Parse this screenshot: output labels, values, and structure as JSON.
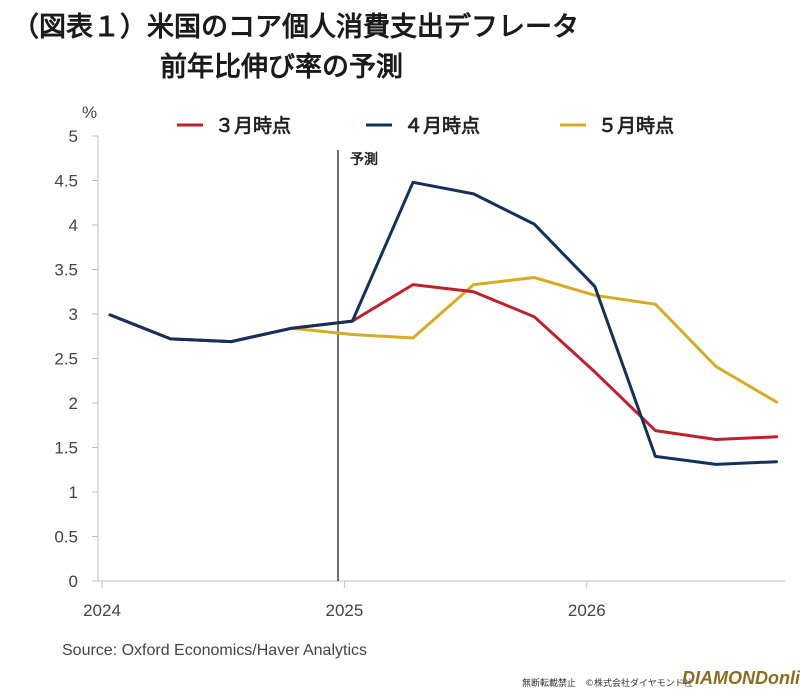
{
  "title_line1": "（図表１）米国のコア個人消費支出デフレータ",
  "title_line2": "前年比伸び率の予測",
  "source": "Source: Oxford Economics/Haver Analytics",
  "copyright": "無断転載禁止　©株式会社ダイヤモンド社",
  "brand": "DIAMONDonline",
  "chart_data": {
    "type": "line",
    "ylabel": "%",
    "ylim": [
      0,
      5
    ],
    "yticks": [
      "0",
      "0.5",
      "1",
      "1.5",
      "2",
      "2.5",
      "3",
      "3.5",
      "4",
      "4.5",
      "5"
    ],
    "xtick_labels": [
      "2024",
      "2025",
      "2026"
    ],
    "annotation": "予測",
    "colors": {
      "s1": "#c0202d",
      "s2": "#13315c",
      "s3": "#d6ac24"
    },
    "series": [
      {
        "name": "３月時点",
        "key": "s1",
        "values": [
          2.99,
          2.72,
          2.69,
          2.84,
          2.92,
          3.33,
          3.25,
          2.97,
          2.35,
          1.69,
          1.59,
          1.62
        ]
      },
      {
        "name": "４月時点",
        "key": "s2",
        "values": [
          2.99,
          2.72,
          2.69,
          2.84,
          2.92,
          4.48,
          4.35,
          4.01,
          3.31,
          1.4,
          1.31,
          1.34
        ]
      },
      {
        "name": "５月時点",
        "key": "s3",
        "values": [
          2.99,
          2.72,
          2.69,
          2.84,
          2.77,
          2.73,
          3.33,
          3.41,
          3.21,
          3.11,
          2.41,
          2.01
        ]
      }
    ]
  }
}
